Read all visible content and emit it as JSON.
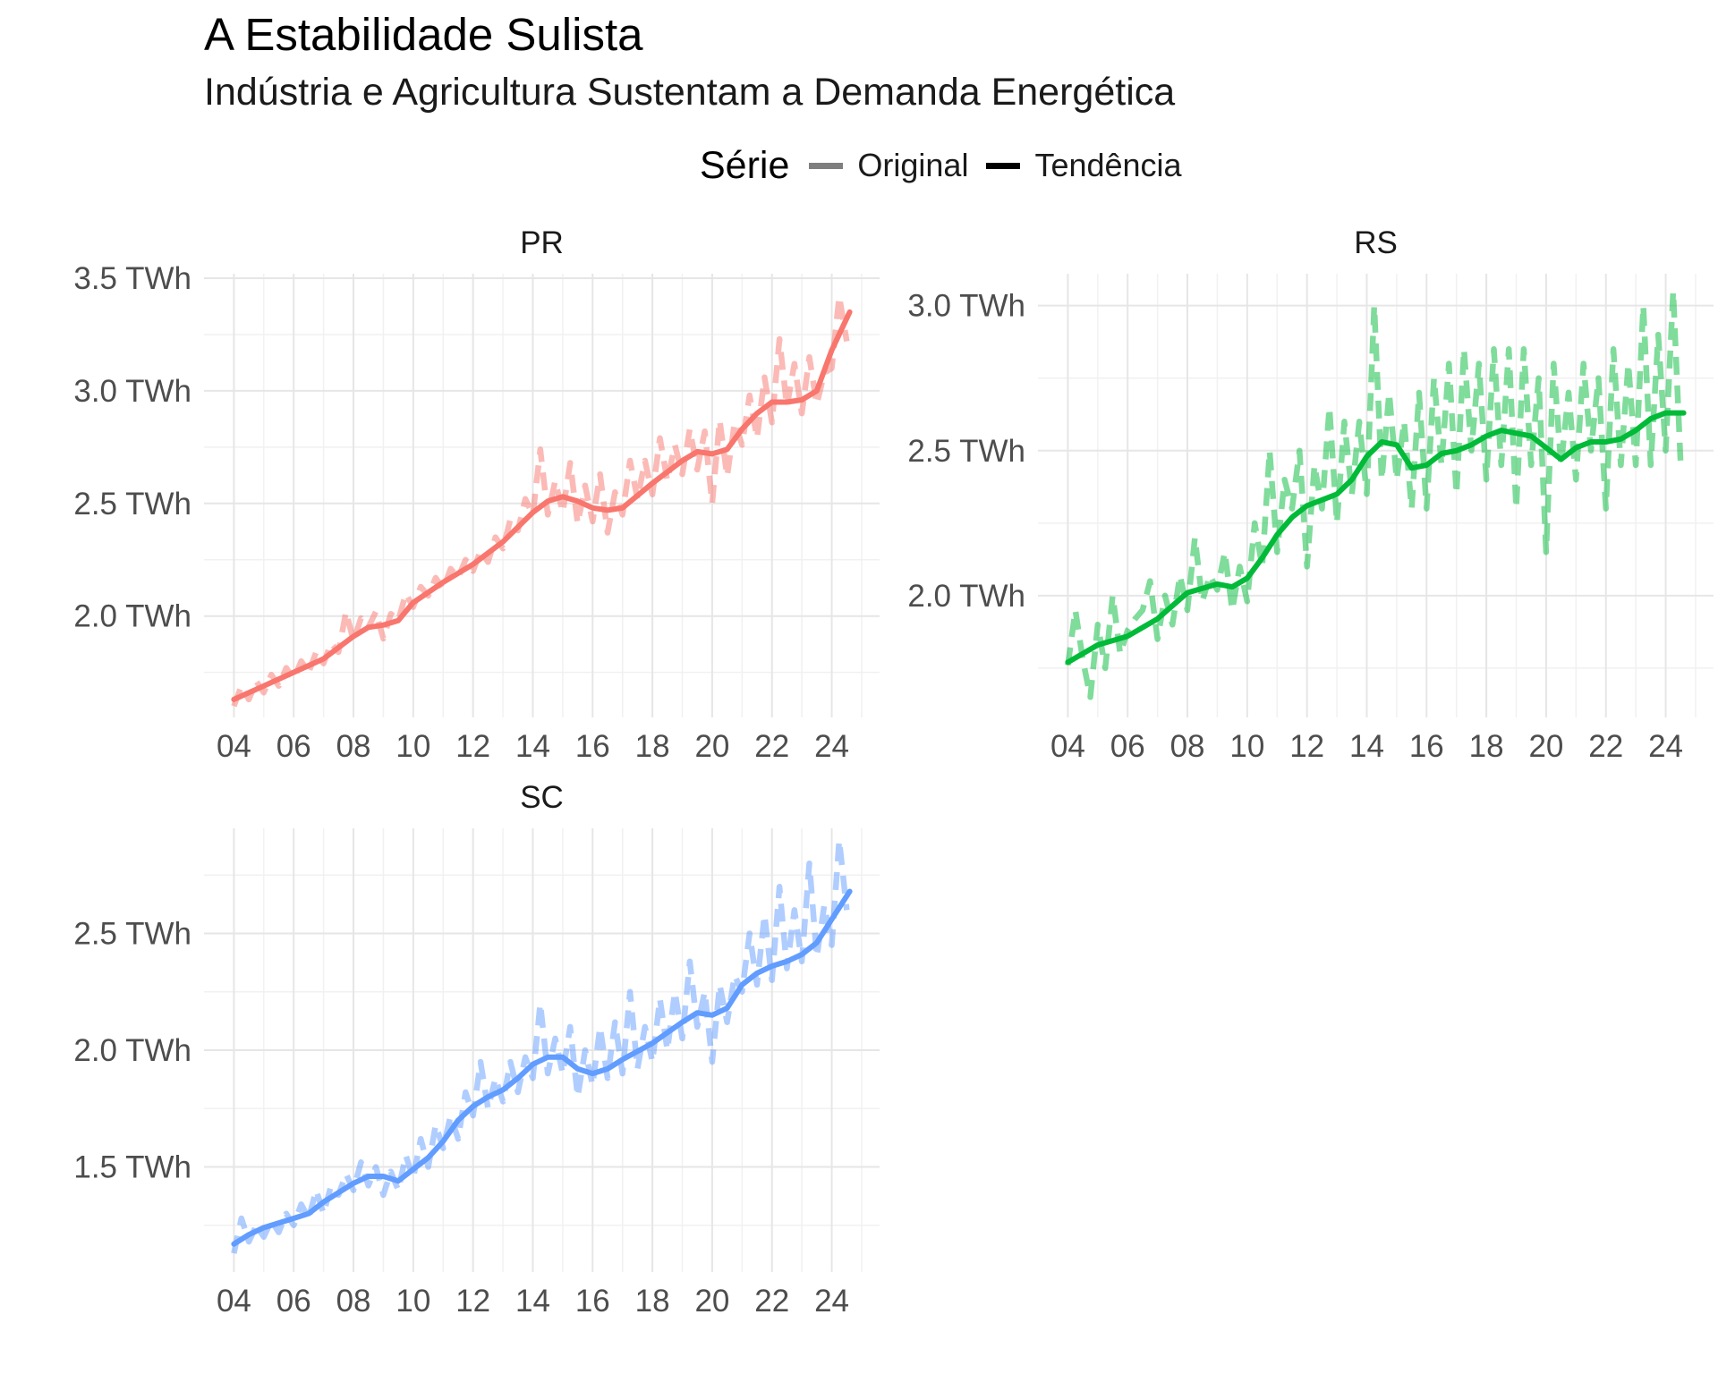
{
  "title": "A Estabilidade Sulista",
  "subtitle": "Indústria e Agricultura Sustentam a Demanda Energética",
  "legend": {
    "title": "Série",
    "items": [
      {
        "label": "Original",
        "color": "#7f7f7f"
      },
      {
        "label": "Tendência",
        "color": "#000000"
      }
    ]
  },
  "chart_data": {
    "type": "line",
    "facets": [
      "PR",
      "RS",
      "SC"
    ],
    "x_tick_labels": [
      "04",
      "06",
      "08",
      "10",
      "12",
      "14",
      "16",
      "18",
      "20",
      "22",
      "24"
    ],
    "x_ticks": [
      2004,
      2006,
      2008,
      2010,
      2012,
      2014,
      2016,
      2018,
      2020,
      2022,
      2024
    ],
    "xlim": [
      2003,
      2025.6
    ],
    "unit": "TWh",
    "panels": [
      {
        "name": "PR",
        "color": "#F8766D",
        "ylim": [
          1.55,
          3.52
        ],
        "y_ticks": [
          2.0,
          2.5,
          3.0,
          3.5
        ],
        "y_tick_labels": [
          "2.0 TWh",
          "2.5 TWh",
          "3.0 TWh",
          "3.5 TWh"
        ],
        "trend_x": [
          2004.0,
          2005.0,
          2006.0,
          2007.0,
          2008.0,
          2008.5,
          2009.0,
          2009.5,
          2010.0,
          2011.0,
          2012.0,
          2013.0,
          2014.0,
          2014.5,
          2015.0,
          2015.5,
          2016.0,
          2016.5,
          2017.0,
          2018.0,
          2019.0,
          2019.5,
          2020.0,
          2020.5,
          2021.0,
          2021.5,
          2022.0,
          2022.5,
          2023.0,
          2023.5,
          2024.0,
          2024.6
        ],
        "trend_y": [
          1.63,
          1.69,
          1.75,
          1.81,
          1.91,
          1.95,
          1.96,
          1.98,
          2.06,
          2.15,
          2.23,
          2.33,
          2.46,
          2.51,
          2.53,
          2.51,
          2.48,
          2.47,
          2.48,
          2.59,
          2.69,
          2.73,
          2.72,
          2.74,
          2.83,
          2.9,
          2.95,
          2.95,
          2.96,
          3.0,
          3.18,
          3.35
        ],
        "orig_x": [
          2004.0,
          2004.25,
          2004.5,
          2004.75,
          2005.0,
          2005.25,
          2005.5,
          2005.75,
          2006.0,
          2006.25,
          2006.5,
          2006.75,
          2007.0,
          2007.25,
          2007.5,
          2007.75,
          2008.0,
          2008.25,
          2008.5,
          2008.75,
          2009.0,
          2009.25,
          2009.5,
          2009.75,
          2010.0,
          2010.25,
          2010.5,
          2010.75,
          2011.0,
          2011.25,
          2011.5,
          2011.75,
          2012.0,
          2012.25,
          2012.5,
          2012.75,
          2013.0,
          2013.25,
          2013.5,
          2013.75,
          2014.0,
          2014.25,
          2014.5,
          2014.75,
          2015.0,
          2015.25,
          2015.5,
          2015.75,
          2016.0,
          2016.25,
          2016.5,
          2016.75,
          2017.0,
          2017.25,
          2017.5,
          2017.75,
          2018.0,
          2018.25,
          2018.5,
          2018.75,
          2019.0,
          2019.25,
          2019.5,
          2019.75,
          2020.0,
          2020.25,
          2020.5,
          2020.75,
          2021.0,
          2021.25,
          2021.5,
          2021.75,
          2022.0,
          2022.25,
          2022.5,
          2022.75,
          2023.0,
          2023.25,
          2023.5,
          2023.75,
          2024.0,
          2024.25,
          2024.5
        ],
        "orig_y": [
          1.6,
          1.69,
          1.63,
          1.71,
          1.66,
          1.74,
          1.69,
          1.77,
          1.72,
          1.8,
          1.75,
          1.84,
          1.79,
          1.88,
          1.84,
          2.02,
          1.89,
          1.99,
          1.95,
          2.02,
          1.9,
          2.01,
          1.98,
          2.1,
          2.04,
          2.13,
          2.09,
          2.17,
          2.12,
          2.21,
          2.17,
          2.25,
          2.2,
          2.29,
          2.24,
          2.35,
          2.3,
          2.43,
          2.38,
          2.52,
          2.45,
          2.74,
          2.45,
          2.6,
          2.46,
          2.68,
          2.41,
          2.58,
          2.42,
          2.63,
          2.37,
          2.55,
          2.45,
          2.69,
          2.52,
          2.69,
          2.54,
          2.79,
          2.6,
          2.76,
          2.63,
          2.83,
          2.65,
          2.82,
          2.5,
          2.87,
          2.62,
          2.86,
          2.76,
          2.98,
          2.79,
          3.06,
          2.86,
          3.23,
          2.93,
          3.12,
          2.9,
          3.15,
          2.94,
          3.08,
          3.1,
          3.42,
          3.22
        ]
      },
      {
        "name": "RS",
        "color": "#00BA38",
        "ylim": [
          1.58,
          3.11
        ],
        "y_ticks": [
          2.0,
          2.5,
          3.0
        ],
        "y_tick_labels": [
          "2.0 TWh",
          "2.5 TWh",
          "3.0 TWh"
        ],
        "trend_x": [
          2004.0,
          2004.5,
          2005.0,
          2006.0,
          2007.0,
          2008.0,
          2009.0,
          2009.5,
          2010.0,
          2010.5,
          2011.0,
          2011.5,
          2012.0,
          2013.0,
          2013.5,
          2014.0,
          2014.5,
          2015.0,
          2015.5,
          2016.0,
          2016.5,
          2017.0,
          2017.5,
          2018.0,
          2018.5,
          2019.0,
          2019.5,
          2020.0,
          2020.5,
          2021.0,
          2021.5,
          2022.0,
          2022.5,
          2023.0,
          2023.5,
          2024.0,
          2024.6
        ],
        "trend_y": [
          1.77,
          1.8,
          1.83,
          1.86,
          1.92,
          2.01,
          2.04,
          2.03,
          2.06,
          2.13,
          2.21,
          2.27,
          2.31,
          2.35,
          2.4,
          2.48,
          2.53,
          2.52,
          2.44,
          2.45,
          2.49,
          2.5,
          2.52,
          2.55,
          2.57,
          2.56,
          2.55,
          2.51,
          2.47,
          2.51,
          2.53,
          2.53,
          2.54,
          2.57,
          2.61,
          2.63,
          2.63
        ],
        "orig_x": [
          2004.0,
          2004.25,
          2004.5,
          2004.75,
          2005.0,
          2005.25,
          2005.5,
          2005.75,
          2006.0,
          2006.25,
          2006.5,
          2006.75,
          2007.0,
          2007.25,
          2007.5,
          2007.75,
          2008.0,
          2008.25,
          2008.5,
          2008.75,
          2009.0,
          2009.25,
          2009.5,
          2009.75,
          2010.0,
          2010.25,
          2010.5,
          2010.75,
          2011.0,
          2011.25,
          2011.5,
          2011.75,
          2012.0,
          2012.25,
          2012.5,
          2012.75,
          2013.0,
          2013.25,
          2013.5,
          2013.75,
          2014.0,
          2014.25,
          2014.5,
          2014.75,
          2015.0,
          2015.25,
          2015.5,
          2015.75,
          2016.0,
          2016.25,
          2016.5,
          2016.75,
          2017.0,
          2017.25,
          2017.5,
          2017.75,
          2018.0,
          2018.25,
          2018.5,
          2018.75,
          2019.0,
          2019.25,
          2019.5,
          2019.75,
          2020.0,
          2020.25,
          2020.5,
          2020.75,
          2021.0,
          2021.25,
          2021.5,
          2021.75,
          2022.0,
          2022.25,
          2022.5,
          2022.75,
          2023.0,
          2023.25,
          2023.5,
          2023.75,
          2024.0,
          2024.25,
          2024.5
        ],
        "orig_y": [
          1.76,
          1.95,
          1.78,
          1.65,
          1.9,
          1.75,
          2.0,
          1.8,
          1.88,
          1.92,
          1.95,
          2.05,
          1.85,
          2.0,
          1.9,
          2.07,
          1.95,
          2.2,
          1.98,
          2.07,
          2.02,
          2.15,
          1.95,
          2.1,
          1.98,
          2.25,
          2.1,
          2.5,
          2.15,
          2.4,
          2.3,
          2.5,
          2.1,
          2.45,
          2.3,
          2.65,
          2.25,
          2.6,
          2.35,
          2.6,
          2.35,
          3.0,
          2.4,
          2.7,
          2.4,
          2.6,
          2.3,
          2.7,
          2.3,
          2.75,
          2.45,
          2.8,
          2.35,
          2.85,
          2.5,
          2.8,
          2.4,
          2.85,
          2.45,
          2.85,
          2.3,
          2.85,
          2.45,
          2.75,
          2.15,
          2.8,
          2.45,
          2.7,
          2.4,
          2.8,
          2.5,
          2.75,
          2.3,
          2.85,
          2.45,
          2.8,
          2.45,
          3.0,
          2.45,
          2.9,
          2.5,
          3.05,
          2.45
        ]
      },
      {
        "name": "SC",
        "color": "#619CFF",
        "ylim": [
          1.05,
          2.95
        ],
        "y_ticks": [
          1.5,
          2.0,
          2.5
        ],
        "y_tick_labels": [
          "1.5 TWh",
          "2.0 TWh",
          "2.5 TWh"
        ],
        "trend_x": [
          2004.0,
          2004.5,
          2005.0,
          2006.0,
          2006.5,
          2007.0,
          2008.0,
          2008.5,
          2009.0,
          2009.5,
          2010.0,
          2010.5,
          2011.0,
          2011.5,
          2012.0,
          2012.5,
          2013.0,
          2013.5,
          2014.0,
          2014.5,
          2015.0,
          2015.5,
          2016.0,
          2016.5,
          2017.0,
          2018.0,
          2019.0,
          2019.5,
          2020.0,
          2020.5,
          2021.0,
          2021.5,
          2022.0,
          2022.5,
          2023.0,
          2023.5,
          2024.0,
          2024.6
        ],
        "trend_y": [
          1.17,
          1.21,
          1.24,
          1.28,
          1.3,
          1.35,
          1.43,
          1.46,
          1.46,
          1.44,
          1.49,
          1.54,
          1.61,
          1.7,
          1.76,
          1.8,
          1.83,
          1.88,
          1.94,
          1.97,
          1.97,
          1.92,
          1.9,
          1.92,
          1.96,
          2.03,
          2.12,
          2.16,
          2.15,
          2.18,
          2.28,
          2.33,
          2.36,
          2.38,
          2.41,
          2.46,
          2.56,
          2.68
        ],
        "orig_x": [
          2004.0,
          2004.25,
          2004.5,
          2004.75,
          2005.0,
          2005.25,
          2005.5,
          2005.75,
          2006.0,
          2006.25,
          2006.5,
          2006.75,
          2007.0,
          2007.25,
          2007.5,
          2007.75,
          2008.0,
          2008.25,
          2008.5,
          2008.75,
          2009.0,
          2009.25,
          2009.5,
          2009.75,
          2010.0,
          2010.25,
          2010.5,
          2010.75,
          2011.0,
          2011.25,
          2011.5,
          2011.75,
          2012.0,
          2012.25,
          2012.5,
          2012.75,
          2013.0,
          2013.25,
          2013.5,
          2013.75,
          2014.0,
          2014.25,
          2014.5,
          2014.75,
          2015.0,
          2015.25,
          2015.5,
          2015.75,
          2016.0,
          2016.25,
          2016.5,
          2016.75,
          2017.0,
          2017.25,
          2017.5,
          2017.75,
          2018.0,
          2018.25,
          2018.5,
          2018.75,
          2019.0,
          2019.25,
          2019.5,
          2019.75,
          2020.0,
          2020.25,
          2020.5,
          2020.75,
          2021.0,
          2021.25,
          2021.5,
          2021.75,
          2022.0,
          2022.25,
          2022.5,
          2022.75,
          2023.0,
          2023.25,
          2023.5,
          2023.75,
          2024.0,
          2024.25,
          2024.5
        ],
        "orig_y": [
          1.13,
          1.28,
          1.18,
          1.25,
          1.2,
          1.27,
          1.22,
          1.3,
          1.25,
          1.34,
          1.28,
          1.4,
          1.3,
          1.42,
          1.38,
          1.47,
          1.4,
          1.52,
          1.42,
          1.5,
          1.38,
          1.48,
          1.4,
          1.55,
          1.45,
          1.62,
          1.5,
          1.68,
          1.58,
          1.72,
          1.62,
          1.82,
          1.72,
          1.95,
          1.75,
          1.88,
          1.78,
          1.95,
          1.82,
          1.97,
          1.88,
          2.2,
          1.9,
          2.05,
          1.9,
          2.1,
          1.8,
          2.0,
          1.85,
          2.1,
          1.88,
          2.12,
          1.9,
          2.25,
          1.92,
          2.1,
          1.95,
          2.22,
          2.0,
          2.25,
          2.05,
          2.38,
          2.1,
          2.25,
          1.95,
          2.28,
          2.12,
          2.32,
          2.25,
          2.5,
          2.28,
          2.58,
          2.3,
          2.7,
          2.35,
          2.6,
          2.38,
          2.8,
          2.4,
          2.62,
          2.45,
          2.9,
          2.6
        ]
      }
    ]
  }
}
